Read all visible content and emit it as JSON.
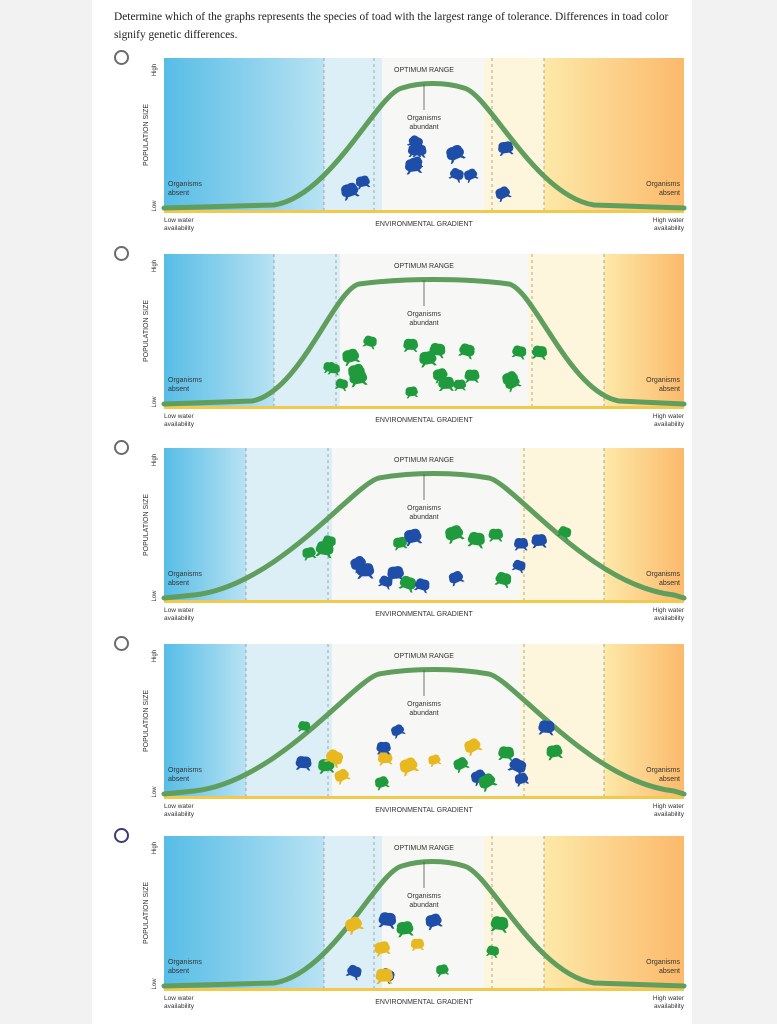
{
  "question": "Determine which of the graphs represents the species of toad with the largest range of tolerance. Differences in toad color signify genetic differences.",
  "labels": {
    "optimum": "OPTIMUM RANGE",
    "abundant_line1": "Organisms",
    "abundant_line2": "abundant",
    "absent_line1": "Organisms",
    "absent_line2": "absent",
    "y_axis": "POPULATION SIZE",
    "y_high": "High",
    "y_low": "Low",
    "x_axis": "ENVIRONMENTAL GRADIENT",
    "low_water_line1": "Low water",
    "low_water_line2": "availability",
    "high_water_line1": "High water",
    "high_water_line2": "availability"
  },
  "colors": {
    "curve": "#5f9e5c",
    "toad_green": "#1f9a3c",
    "toad_blue": "#1f4ea8",
    "toad_yellow": "#e8b820",
    "blue_zone": "#57bde6",
    "orange_zone": "#fbb96b",
    "radio_selected": "#3b3b7a"
  },
  "options": [
    {
      "id": "A",
      "selected": false,
      "colors": [
        "blue"
      ],
      "width": "narrow"
    },
    {
      "id": "B",
      "selected": false,
      "colors": [
        "green"
      ],
      "width": "medium"
    },
    {
      "id": "C",
      "selected": false,
      "colors": [
        "blue",
        "green"
      ],
      "width": "wide"
    },
    {
      "id": "D",
      "selected": false,
      "colors": [
        "green",
        "blue",
        "yellow"
      ],
      "width": "wide"
    },
    {
      "id": "E",
      "selected": true,
      "colors": [
        "green",
        "blue",
        "yellow"
      ],
      "width": "narrow"
    }
  ]
}
